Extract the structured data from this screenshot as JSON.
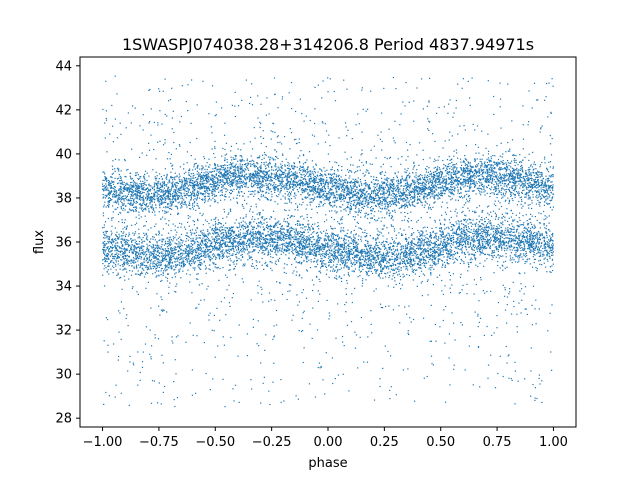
{
  "chart_data": {
    "type": "scatter",
    "title": "1SWASPJ074038.28+314206.8 Period 4837.94971s",
    "xlabel": "phase",
    "ylabel": "flux",
    "xlim": [
      -1.1,
      1.1
    ],
    "ylim": [
      27.6,
      44.4
    ],
    "xticks": [
      -1.0,
      -0.75,
      -0.5,
      -0.25,
      0.0,
      0.25,
      0.5,
      0.75,
      1.0
    ],
    "xtick_labels": [
      "−1.00",
      "−0.75",
      "−0.50",
      "−0.25",
      "0.00",
      "0.25",
      "0.50",
      "0.75",
      "1.00"
    ],
    "yticks": [
      28,
      30,
      32,
      34,
      36,
      38,
      40,
      42,
      44
    ],
    "ytick_labels": [
      "28",
      "30",
      "32",
      "34",
      "36",
      "38",
      "40",
      "42",
      "44"
    ],
    "grid": false,
    "legend": "none",
    "point_color": "#1f77b4",
    "series": [
      {
        "x": [
          -1.0,
          -0.9,
          -0.8,
          -0.7,
          -0.6,
          -0.5,
          -0.4,
          -0.3,
          -0.2,
          -0.1,
          0.0,
          0.1,
          0.2,
          0.3,
          0.4,
          0.5,
          0.6,
          0.7,
          0.8,
          0.9,
          1.0
        ],
        "y": [
          38.4,
          38.2,
          38.1,
          38.2,
          38.5,
          38.8,
          39.0,
          39.0,
          38.9,
          38.7,
          38.4,
          38.2,
          38.1,
          38.2,
          38.4,
          38.7,
          38.9,
          39.0,
          38.9,
          38.7,
          38.4
        ],
        "spread": 0.45
      },
      {
        "x": [
          -1.0,
          -0.9,
          -0.8,
          -0.7,
          -0.6,
          -0.5,
          -0.4,
          -0.3,
          -0.2,
          -0.1,
          0.0,
          0.1,
          0.2,
          0.3,
          0.4,
          0.5,
          0.6,
          0.7,
          0.8,
          0.9,
          1.0
        ],
        "y": [
          35.8,
          35.6,
          35.4,
          35.4,
          35.6,
          35.9,
          36.1,
          36.2,
          36.1,
          35.9,
          35.7,
          35.5,
          35.3,
          35.3,
          35.5,
          35.8,
          36.1,
          36.2,
          36.1,
          36.0,
          35.8
        ],
        "spread": 0.5
      },
      {
        "x": [
          -1.0,
          1.0
        ],
        "y": [
          28.5,
          43.5
        ],
        "spread": 0
      }
    ]
  }
}
